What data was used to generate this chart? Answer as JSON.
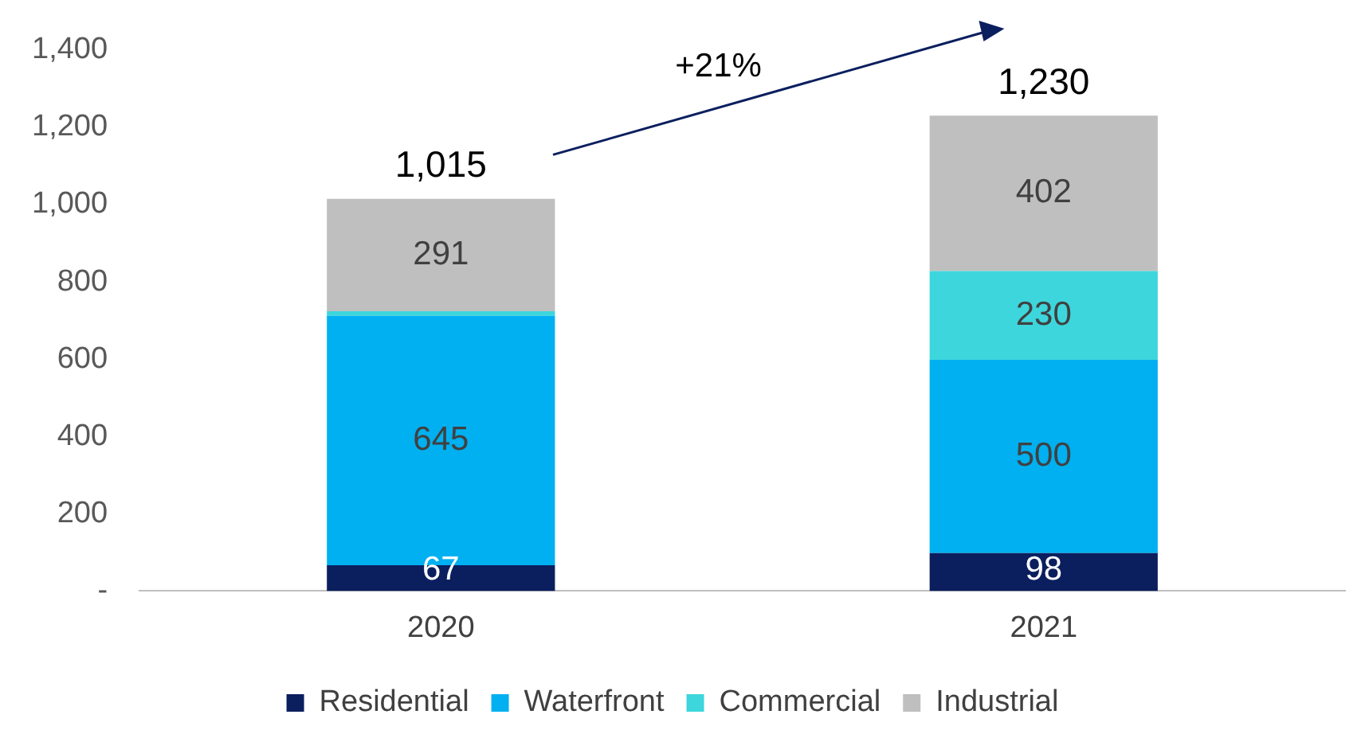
{
  "chart_data": {
    "type": "bar",
    "stacked": true,
    "categories": [
      "2020",
      "2021"
    ],
    "series": [
      {
        "name": "Residential",
        "color": "#0b1f5e",
        "values": [
          67,
          98
        ],
        "value_labels": [
          "67",
          "98"
        ]
      },
      {
        "name": "Waterfront",
        "color": "#00b0f0",
        "values": [
          645,
          500
        ],
        "value_labels": [
          "645",
          "500"
        ]
      },
      {
        "name": "Commercial",
        "color": "#3dd6dc",
        "values": [
          12,
          230
        ],
        "value_labels": [
          null,
          "230"
        ]
      },
      {
        "name": "Industrial",
        "color": "#bfbfbf",
        "values": [
          291,
          402
        ],
        "value_labels": [
          "291",
          "402"
        ]
      }
    ],
    "totals": [
      "1,015",
      "1,230"
    ],
    "annotations": [
      "+21%"
    ],
    "ylim": [
      0,
      1400
    ],
    "yticks": [
      {
        "value": 0,
        "label": "-"
      },
      200,
      400,
      600,
      800,
      {
        "value": 1000,
        "label": "1,000"
      },
      {
        "value": 1200,
        "label": "1,200"
      },
      {
        "value": 1400,
        "label": "1,400"
      }
    ],
    "grid": false,
    "legend": "bottom"
  }
}
